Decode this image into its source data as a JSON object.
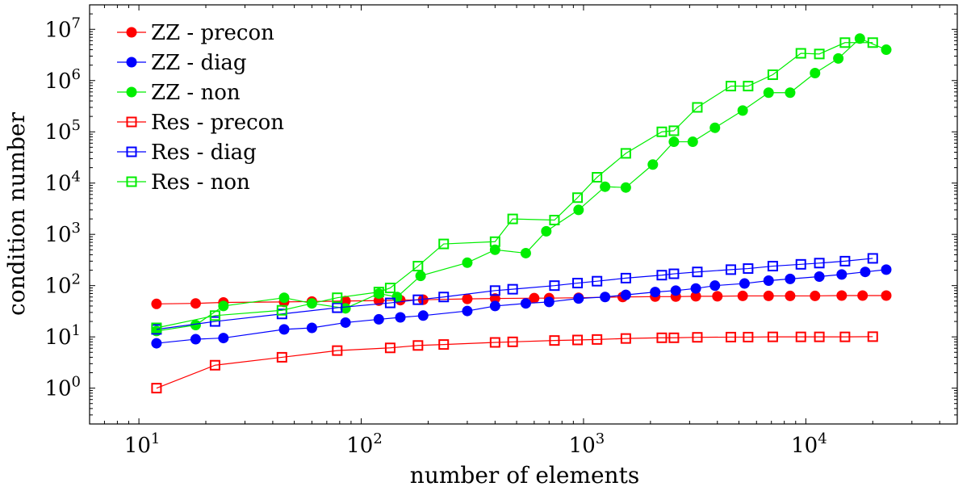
{
  "chart_data": {
    "type": "line",
    "xscale": "log",
    "yscale": "log",
    "xlabel": "number of elements",
    "ylabel": "condition number",
    "xlim": [
      6,
      48000
    ],
    "ylim": [
      0.2,
      30000000
    ],
    "xticks": [
      {
        "value": 10,
        "base": "10",
        "exp": "1"
      },
      {
        "value": 100,
        "base": "10",
        "exp": "2"
      },
      {
        "value": 1000,
        "base": "10",
        "exp": "3"
      },
      {
        "value": 10000,
        "base": "10",
        "exp": "4"
      }
    ],
    "yticks": [
      {
        "value": 1,
        "base": "10",
        "exp": "0"
      },
      {
        "value": 10,
        "base": "10",
        "exp": "1"
      },
      {
        "value": 100,
        "base": "10",
        "exp": "2"
      },
      {
        "value": 1000,
        "base": "10",
        "exp": "3"
      },
      {
        "value": 10000,
        "base": "10",
        "exp": "4"
      },
      {
        "value": 100000,
        "base": "10",
        "exp": "5"
      },
      {
        "value": 1000000,
        "base": "10",
        "exp": "6"
      },
      {
        "value": 10000000,
        "base": "10",
        "exp": "7"
      }
    ],
    "grid": false,
    "legend_position": "top-left",
    "series": [
      {
        "name": "ZZ - precon",
        "color": "#ff0000",
        "marker": "circle",
        "x": [
          12,
          18,
          24,
          45,
          60,
          85,
          120,
          150,
          190,
          300,
          400,
          600,
          700,
          950,
          1500,
          2100,
          2600,
          3200,
          4000,
          5200,
          6800,
          8500,
          11000,
          14500,
          18000,
          23000
        ],
        "y": [
          44,
          45,
          47,
          48,
          49,
          50,
          51,
          52,
          53,
          55,
          56,
          57,
          57,
          58,
          60,
          61,
          61,
          62,
          62,
          63,
          63,
          63,
          63,
          64,
          64,
          64
        ]
      },
      {
        "name": "ZZ - diag",
        "color": "#0000ff",
        "marker": "circle",
        "x": [
          12,
          18,
          24,
          45,
          60,
          85,
          120,
          150,
          190,
          300,
          400,
          550,
          700,
          950,
          1250,
          1550,
          2100,
          2600,
          3200,
          3900,
          5300,
          6800,
          8500,
          11500,
          14500,
          18500,
          23000
        ],
        "y": [
          7.5,
          9,
          9.5,
          14,
          15,
          19,
          22,
          24,
          26,
          32,
          40,
          45,
          48,
          56,
          60,
          66,
          75,
          80,
          88,
          100,
          110,
          125,
          135,
          150,
          165,
          185,
          205
        ]
      },
      {
        "name": "ZZ - non",
        "color": "#00ee00",
        "marker": "circle",
        "x": [
          12,
          18,
          24,
          45,
          60,
          85,
          120,
          145,
          185,
          300,
          400,
          550,
          680,
          950,
          1250,
          1550,
          2050,
          2550,
          3100,
          3900,
          5200,
          6800,
          8500,
          11000,
          14000,
          17500,
          23000
        ],
        "y": [
          13,
          17,
          40,
          58,
          45,
          36,
          70,
          60,
          155,
          280,
          500,
          430,
          1150,
          3000,
          8500,
          8200,
          23000,
          64000,
          64000,
          120000,
          260000,
          580000,
          580000,
          1400000,
          2700000,
          6600000,
          4000000
        ]
      },
      {
        "name": "Res - precon",
        "color": "#ff0000",
        "marker": "square",
        "x": [
          12,
          22,
          44,
          78,
          135,
          180,
          235,
          400,
          480,
          740,
          940,
          1150,
          1550,
          2250,
          2550,
          3250,
          4600,
          5500,
          7100,
          9500,
          11500,
          15000,
          20000
        ],
        "y": [
          1.0,
          2.8,
          4.0,
          5.4,
          6.1,
          6.8,
          7.1,
          7.8,
          8.0,
          8.5,
          8.7,
          8.9,
          9.3,
          9.6,
          9.6,
          9.8,
          9.9,
          9.9,
          10.0,
          10.0,
          10.0,
          10.0,
          10.1
        ]
      },
      {
        "name": "Res - diag",
        "color": "#0000ff",
        "marker": "square",
        "x": [
          12,
          22,
          44,
          78,
          135,
          180,
          235,
          400,
          480,
          740,
          940,
          1150,
          1550,
          2250,
          2550,
          3250,
          4600,
          5500,
          7100,
          9500,
          11500,
          15000,
          20000
        ],
        "y": [
          14,
          20,
          28,
          37,
          46,
          53,
          60,
          80,
          85,
          100,
          112,
          122,
          140,
          160,
          170,
          185,
          205,
          215,
          240,
          260,
          275,
          300,
          340
        ]
      },
      {
        "name": "Res - non",
        "color": "#00ee00",
        "marker": "square",
        "x": [
          12,
          22,
          44,
          78,
          120,
          135,
          180,
          235,
          400,
          480,
          740,
          940,
          1150,
          1550,
          2250,
          2550,
          3250,
          4600,
          5500,
          7100,
          9500,
          11500,
          15000,
          20000
        ],
        "y": [
          15,
          26,
          33,
          58,
          75,
          90,
          240,
          650,
          720,
          2000,
          1900,
          5200,
          13000,
          38000,
          100000,
          105000,
          300000,
          780000,
          780000,
          1300000,
          3400000,
          3300000,
          5500000,
          5500000
        ]
      }
    ]
  }
}
